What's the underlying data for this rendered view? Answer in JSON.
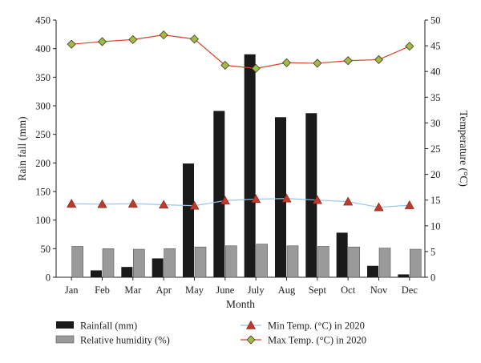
{
  "chart_data": {
    "type": "bar",
    "categories": [
      "Jan",
      "Feb",
      "Mar",
      "Apr",
      "May",
      "June",
      "July",
      "Aug",
      "Sept",
      "Oct",
      "Nov",
      "Dec"
    ],
    "xlabel": "Month",
    "ylabel_left": "Rain fall (mm)",
    "ylabel_right": "Temperature (°C)",
    "ylim_left": [
      0,
      450
    ],
    "ylim_right": [
      0,
      50
    ],
    "yticks_left": [
      "0",
      "50",
      "100",
      "150",
      "200",
      "250",
      "300",
      "350",
      "400",
      "450"
    ],
    "yticks_right": [
      "0",
      "5",
      "10",
      "15",
      "20",
      "25",
      "30",
      "35",
      "40",
      "45",
      "50"
    ],
    "grid": false,
    "legend_position": "bottom",
    "series": [
      {
        "name": "Rainfall (mm)",
        "kind": "bar",
        "axis": "left",
        "color": "#1a1a1a",
        "values": [
          0,
          12,
          18,
          33,
          199,
          291,
          390,
          280,
          287,
          78,
          20,
          5
        ]
      },
      {
        "name": "Relative humidity (%)",
        "kind": "bar",
        "axis": "left",
        "color": "#9a9a9a",
        "values": [
          54,
          50,
          49,
          50,
          53,
          55,
          58,
          55,
          54,
          53,
          51,
          49
        ]
      },
      {
        "name": "Min Temp. (°C) in 2020",
        "kind": "line",
        "axis": "right",
        "color": "#9cc3e6",
        "marker": "triangle",
        "marker_color": "#c0392b",
        "values": [
          14.3,
          14.2,
          14.3,
          14.1,
          13.9,
          14.9,
          15.2,
          15.3,
          15.0,
          14.7,
          13.6,
          14.0
        ]
      },
      {
        "name": "Max Temp. (°C) in 2020",
        "kind": "line",
        "axis": "right",
        "color": "#d9442b",
        "marker": "diamond",
        "marker_color": "#a7b84a",
        "values": [
          45.3,
          45.8,
          46.2,
          47.1,
          46.3,
          41.2,
          40.6,
          41.7,
          41.6,
          42.1,
          42.3,
          44.9
        ]
      }
    ]
  }
}
